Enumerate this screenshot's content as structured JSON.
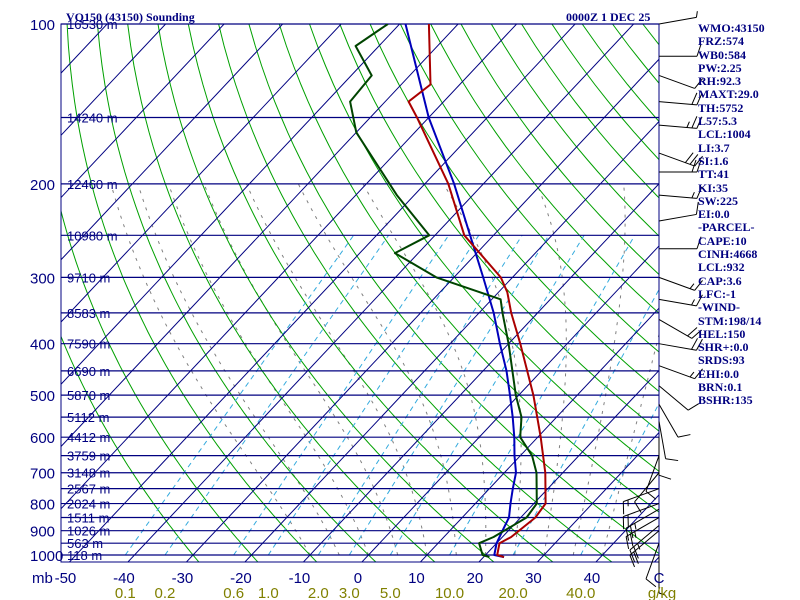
{
  "title_left": "VQ150 (43150) Sounding",
  "title_right": "0000Z  1 DEC 25",
  "indices": [
    "WMO:43150",
    "FRZ:574",
    "WB0:584",
    "PW:2.25",
    "RH:92.3",
    "MAXT:29.0",
    "TH:5752",
    "L57:5.3",
    "LCL:1004",
    "LI:3.7",
    "SI:1.6",
    "TT:41",
    "KI:35",
    "SW:225",
    "EI:0.0",
    "-PARCEL-",
    "CAPE:10",
    "CINH:4668",
    "LCL:932",
    "CAP:3.6",
    "LFC:-1",
    "-WIND-",
    "STM:198/14",
    "HEL:150",
    "SHR+:0.0",
    "SRDS:93",
    "EHI:0.0",
    "BRN:0.1",
    "BSHR:135"
  ],
  "colors": {
    "isobar": "#000080",
    "isotherm": "#000080",
    "dry_adiabat": "#00a000",
    "moist_adiabat": "#808080",
    "mixing_ratio": "#33aadd",
    "temperature": "#aa0000",
    "dewpoint": "#004400",
    "parcel": "#0000bb",
    "text": "#000080"
  },
  "chart_data": {
    "type": "skew-t",
    "title": "VQ150 (43150) Sounding",
    "valid_time": "0000Z  1 DEC 25",
    "y_axis_unit": "mb",
    "x_axis_unit": "C",
    "mixing_ratio_unit": "g/kg",
    "pressure_levels": [
      100,
      200,
      300,
      400,
      500,
      600,
      700,
      800,
      900,
      1000
    ],
    "isotherm_ticks": [
      -50,
      -40,
      -30,
      -20,
      -10,
      0,
      10,
      20,
      30,
      40
    ],
    "temperature_range": [
      -50,
      50
    ],
    "pressure_range": [
      100,
      1050
    ],
    "mixing_ratio_labels": [
      "0.1",
      "0.2",
      "0.6",
      "1.0",
      "2.0",
      "3.0",
      "5.0",
      "10.0",
      "20.0",
      "40.0"
    ],
    "mixing_ratio_values": [
      0.1,
      0.2,
      0.6,
      1.0,
      2.0,
      3.0,
      5.0,
      10.0,
      20.0,
      40.0
    ],
    "heights": [
      {
        "p": 100,
        "label": "16530 m"
      },
      {
        "p": 150,
        "label": "14240 m"
      },
      {
        "p": 200,
        "label": "12460 m"
      },
      {
        "p": 250,
        "label": "10980 m"
      },
      {
        "p": 300,
        "label": "9710 m"
      },
      {
        "p": 350,
        "label": "8583 m"
      },
      {
        "p": 400,
        "label": "7590 m"
      },
      {
        "p": 450,
        "label": "6690 m"
      },
      {
        "p": 500,
        "label": "5870 m"
      },
      {
        "p": 550,
        "label": "5112 m"
      },
      {
        "p": 600,
        "label": "4412 m"
      },
      {
        "p": 650,
        "label": "3759 m"
      },
      {
        "p": 700,
        "label": "3148 m"
      },
      {
        "p": 750,
        "label": "2567 m"
      },
      {
        "p": 800,
        "label": "2024 m"
      },
      {
        "p": 850,
        "label": "1511 m"
      },
      {
        "p": 900,
        "label": "1026 m"
      },
      {
        "p": 950,
        "label": "563 m"
      },
      {
        "p": 1000,
        "label": "118 m"
      }
    ],
    "temperature": [
      [
        1009,
        23.5
      ],
      [
        1000,
        22.0
      ],
      [
        950,
        20.5
      ],
      [
        925,
        21.5
      ],
      [
        850,
        22.5
      ],
      [
        800,
        22.0
      ],
      [
        700,
        17.0
      ],
      [
        600,
        10.5
      ],
      [
        500,
        2.5
      ],
      [
        400,
        -8.0
      ],
      [
        350,
        -14.5
      ],
      [
        320,
        -18.5
      ],
      [
        300,
        -22.0
      ],
      [
        250,
        -35.0
      ],
      [
        200,
        -46.0
      ],
      [
        150,
        -62.0
      ],
      [
        140,
        -66.0
      ],
      [
        130,
        -65.0
      ],
      [
        100,
        -75.0
      ]
    ],
    "dewpoint": [
      [
        1009,
        21.0
      ],
      [
        1000,
        19.5
      ],
      [
        950,
        17.0
      ],
      [
        925,
        18.5
      ],
      [
        850,
        21.0
      ],
      [
        800,
        20.5
      ],
      [
        700,
        15.5
      ],
      [
        650,
        12.0
      ],
      [
        600,
        7.0
      ],
      [
        550,
        4.0
      ],
      [
        500,
        -0.5
      ],
      [
        400,
        -10.0
      ],
      [
        350,
        -16.0
      ],
      [
        330,
        -18.5
      ],
      [
        300,
        -33.0
      ],
      [
        270,
        -44.0
      ],
      [
        250,
        -41.0
      ],
      [
        210,
        -53.0
      ],
      [
        160,
        -70.0
      ],
      [
        140,
        -76.0
      ],
      [
        125,
        -76.5
      ],
      [
        110,
        -84.0
      ],
      [
        100,
        -82.0
      ]
    ],
    "parcel": [
      [
        1009,
        23.5
      ],
      [
        1000,
        21.5
      ],
      [
        950,
        20.0
      ],
      [
        900,
        19.0
      ],
      [
        850,
        18.0
      ],
      [
        800,
        16.0
      ],
      [
        750,
        14.0
      ],
      [
        700,
        12.0
      ],
      [
        650,
        9.0
      ],
      [
        600,
        6.0
      ],
      [
        550,
        2.5
      ],
      [
        500,
        -1.5
      ],
      [
        450,
        -6.0
      ],
      [
        400,
        -11.5
      ],
      [
        350,
        -17.5
      ],
      [
        300,
        -25.0
      ],
      [
        250,
        -34.0
      ],
      [
        200,
        -45.0
      ],
      [
        150,
        -60.0
      ],
      [
        100,
        -79.0
      ]
    ],
    "wind_barbs": [
      {
        "p": 100,
        "dir": 80,
        "kt": 5
      },
      {
        "p": 115,
        "dir": 90,
        "kt": 10
      },
      {
        "p": 125,
        "dir": 110,
        "kt": 10
      },
      {
        "p": 140,
        "dir": 95,
        "kt": 20
      },
      {
        "p": 155,
        "dir": 95,
        "kt": 25
      },
      {
        "p": 175,
        "dir": 110,
        "kt": 30
      },
      {
        "p": 190,
        "dir": 90,
        "kt": 20
      },
      {
        "p": 210,
        "dir": 95,
        "kt": 15
      },
      {
        "p": 235,
        "dir": 80,
        "kt": 10
      },
      {
        "p": 265,
        "dir": 90,
        "kt": 10
      },
      {
        "p": 300,
        "dir": 110,
        "kt": 15
      },
      {
        "p": 330,
        "dir": 100,
        "kt": 15
      },
      {
        "p": 360,
        "dir": 120,
        "kt": 20
      },
      {
        "p": 400,
        "dir": 100,
        "kt": 20
      },
      {
        "p": 440,
        "dir": 110,
        "kt": 15
      },
      {
        "p": 480,
        "dir": 130,
        "kt": 10
      },
      {
        "p": 520,
        "dir": 150,
        "kt": 10
      },
      {
        "p": 560,
        "dir": 170,
        "kt": 10
      },
      {
        "p": 600,
        "dir": 180,
        "kt": 10
      },
      {
        "p": 650,
        "dir": 200,
        "kt": 10
      },
      {
        "p": 700,
        "dir": 220,
        "kt": 10
      },
      {
        "p": 750,
        "dir": 250,
        "kt": 15
      },
      {
        "p": 800,
        "dir": 250,
        "kt": 20
      },
      {
        "p": 820,
        "dir": 240,
        "kt": 25
      },
      {
        "p": 850,
        "dir": 240,
        "kt": 25
      },
      {
        "p": 880,
        "dir": 230,
        "kt": 25
      },
      {
        "p": 900,
        "dir": 230,
        "kt": 20
      },
      {
        "p": 950,
        "dir": 200,
        "kt": 10
      },
      {
        "p": 1000,
        "dir": 180,
        "kt": 5
      }
    ]
  }
}
